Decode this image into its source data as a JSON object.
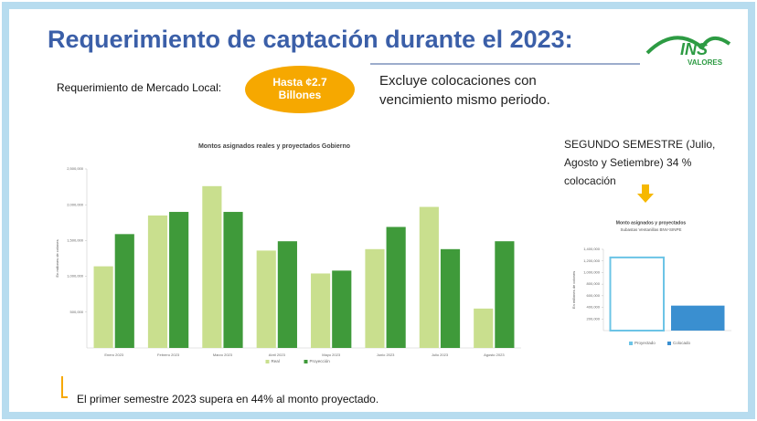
{
  "header": {
    "title": "Requerimiento de captación durante el 2023:",
    "logo": "INS",
    "logo_sub": "VALORES"
  },
  "requirement": {
    "label": "Requerimiento de Mercado Local:",
    "amount": "Hasta ¢2.7 Billones",
    "note": "Excluye colocaciones con vencimiento mismo periodo."
  },
  "second_semester": "SEGUNDO SEMESTRE (Julio, Agosto y Setiembre) 34 % colocación",
  "footer": "El primer semestre  2023 supera en 44% al  monto proyectado.",
  "chart_data": [
    {
      "type": "bar",
      "title": "Montos asignados reales y proyectados Gobierno",
      "y_label": "En millones de colones",
      "categories": [
        "Enero 2023",
        "Febrero 2023",
        "Marzo 2023",
        "Abril 2023",
        "Mayo 2023",
        "Junio 2023",
        "Julio 2023",
        "Agosto 2023"
      ],
      "series": [
        {
          "name": "Real",
          "color": "#c9df8e",
          "values": [
            1140000,
            1850000,
            2260000,
            1360000,
            1040000,
            1380000,
            1970000,
            550000
          ]
        },
        {
          "name": "Proyección",
          "color": "#3f9a3a",
          "values": [
            1590000,
            1900000,
            1900000,
            1490000,
            1080000,
            1690000,
            1380000,
            1490000
          ]
        }
      ],
      "ylim": [
        0,
        2500000
      ],
      "yticks": [
        {
          "value": 500000,
          "label": "500,000"
        },
        {
          "value": 1000000,
          "label": "1,000,000"
        },
        {
          "value": 1500000,
          "label": "1,500,000"
        },
        {
          "value": 2000000,
          "label": "2,000,000"
        },
        {
          "value": 2500000,
          "label": "2,500,000"
        }
      ]
    },
    {
      "type": "bar",
      "title": "Monto asignados y proyectados",
      "subtitle": "Subastas Ventanillas BNV-SINPE",
      "y_label": "En millones de colones",
      "categories": [
        null
      ],
      "series": [
        {
          "name": "Proyectado",
          "color": "#6cc4e6",
          "values": [
            1260000
          ]
        },
        {
          "name": "Colocado",
          "color": "#3a8fd0",
          "values": [
            430000
          ]
        }
      ],
      "ylim": [
        0,
        1400000
      ],
      "yticks": [
        {
          "value": 200000,
          "label": "200,000"
        },
        {
          "value": 400000,
          "label": "400,000"
        },
        {
          "value": 600000,
          "label": "600,000"
        },
        {
          "value": 800000,
          "label": "800,000"
        },
        {
          "value": 1000000,
          "label": "1,000,000"
        },
        {
          "value": 1200000,
          "label": "1,200,000"
        },
        {
          "value": 1400000,
          "label": "1,400,000"
        }
      ]
    }
  ]
}
